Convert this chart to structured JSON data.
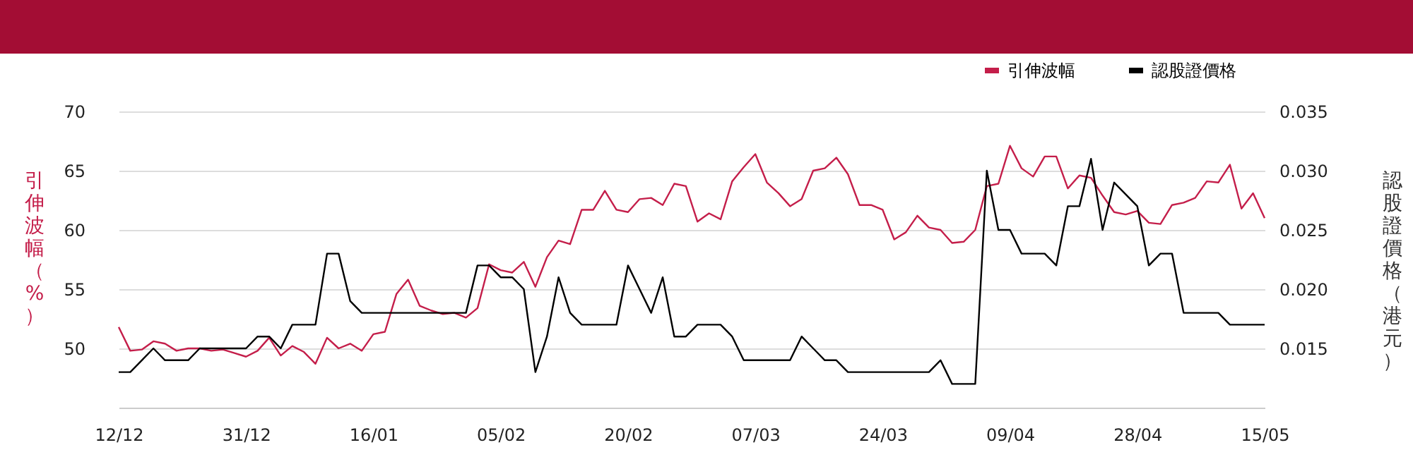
{
  "chart_data": {
    "type": "line",
    "ylabel": "引伸波幅（%）",
    "y2label": "認股證價格（港元）",
    "categories": [
      "12/12",
      null,
      null,
      null,
      null,
      null,
      null,
      null,
      null,
      null,
      null,
      "31/12",
      null,
      null,
      null,
      null,
      null,
      null,
      null,
      null,
      null,
      null,
      "16/01",
      null,
      null,
      null,
      null,
      null,
      null,
      null,
      null,
      null,
      null,
      "05/02",
      null,
      null,
      null,
      null,
      null,
      null,
      null,
      null,
      null,
      null,
      "20/02",
      null,
      null,
      null,
      null,
      null,
      null,
      null,
      null,
      null,
      null,
      "07/03",
      null,
      null,
      null,
      null,
      null,
      null,
      null,
      null,
      null,
      null,
      "24/03",
      null,
      null,
      null,
      null,
      null,
      null,
      null,
      null,
      null,
      null,
      "09/04",
      null,
      null,
      null,
      null,
      null,
      null,
      null,
      null,
      null,
      null,
      "28/04",
      null,
      null,
      null,
      null,
      null,
      null,
      null,
      null,
      null,
      null,
      "15/05"
    ],
    "series": [
      {
        "name": "引伸波幅",
        "color": "#c41e4a",
        "values": [
          51.8,
          49.8,
          49.9,
          50.6,
          50.4,
          49.8,
          50.0,
          50.0,
          49.8,
          49.9,
          49.6,
          49.3,
          49.8,
          50.9,
          49.4,
          50.2,
          49.7,
          48.7,
          50.9,
          50.0,
          50.4,
          49.8,
          51.2,
          51.4,
          54.6,
          55.8,
          53.6,
          53.2,
          52.9,
          53.0,
          52.6,
          53.4,
          57.1,
          56.6,
          56.4,
          57.3,
          55.2,
          57.7,
          59.1,
          58.8,
          61.7,
          61.7,
          63.3,
          61.7,
          61.5,
          62.6,
          62.7,
          62.1,
          63.9,
          63.7,
          60.7,
          61.4,
          60.9,
          64.1,
          65.3,
          66.4,
          64.0,
          63.1,
          62.0,
          62.6,
          65.0,
          65.2,
          66.1,
          64.7,
          62.1,
          62.1,
          61.7,
          59.2,
          59.8,
          61.2,
          60.2,
          60.0,
          58.9,
          59.0,
          60.0,
          63.7,
          63.9,
          67.1,
          65.2,
          64.5,
          66.2,
          66.2,
          63.5,
          64.6,
          64.4,
          62.9,
          61.5,
          61.3,
          61.6,
          60.6,
          60.5,
          62.1,
          62.3,
          62.7,
          64.1,
          64.0,
          65.5,
          61.8,
          63.1,
          61.0
        ]
      },
      {
        "name": "認股證價格",
        "color": "#000000",
        "axis": "y2",
        "values": [
          0.013,
          0.013,
          0.014,
          0.015,
          0.014,
          0.014,
          0.014,
          0.015,
          0.015,
          0.015,
          0.015,
          0.015,
          0.016,
          0.016,
          0.015,
          0.017,
          0.017,
          0.017,
          0.023,
          0.023,
          0.019,
          0.018,
          0.018,
          0.018,
          0.018,
          0.018,
          0.018,
          0.018,
          0.018,
          0.018,
          0.018,
          0.022,
          0.022,
          0.021,
          0.021,
          0.02,
          0.013,
          0.016,
          0.021,
          0.018,
          0.017,
          0.017,
          0.017,
          0.017,
          0.022,
          0.02,
          0.018,
          0.021,
          0.016,
          0.016,
          0.017,
          0.017,
          0.017,
          0.016,
          0.014,
          0.014,
          0.014,
          0.014,
          0.014,
          0.016,
          0.015,
          0.014,
          0.014,
          0.013,
          0.013,
          0.013,
          0.013,
          0.013,
          0.013,
          0.013,
          0.013,
          0.014,
          0.012,
          0.012,
          0.012,
          0.03,
          0.025,
          0.025,
          0.023,
          0.023,
          0.023,
          0.022,
          0.027,
          0.027,
          0.031,
          0.025,
          0.029,
          0.028,
          0.027,
          0.022,
          0.023,
          0.023,
          0.018,
          0.018,
          0.018,
          0.018,
          0.017,
          0.017,
          0.017,
          0.017
        ]
      }
    ],
    "ylim": [
      45,
      70
    ],
    "yticks": [
      50,
      55,
      60,
      65,
      70
    ],
    "y2lim": [
      0.01,
      0.035
    ],
    "y2ticks": [
      {
        "value": 0.015,
        "label": "0.015"
      },
      {
        "value": 0.02,
        "label": "0.020"
      },
      {
        "value": 0.025,
        "label": "0.025"
      },
      {
        "value": 0.03,
        "label": "0.030"
      },
      {
        "value": 0.035,
        "label": "0.035"
      }
    ],
    "grid": "y",
    "legend": "top right"
  }
}
